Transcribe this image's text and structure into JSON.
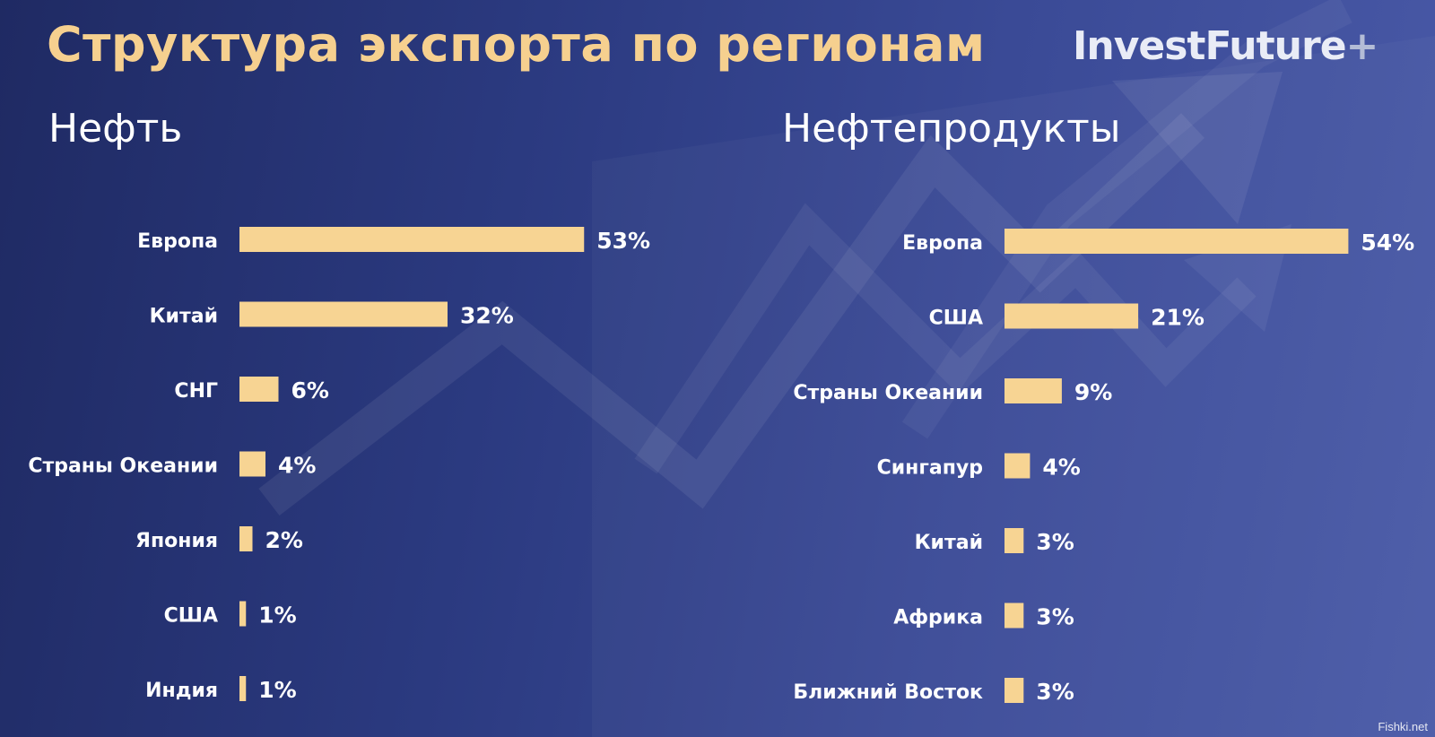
{
  "header": {
    "title": "Структура экспорта по регионам",
    "brand": "InvestFuture",
    "brand_plus": "+"
  },
  "watermark": "Fishki.net",
  "colors": {
    "bar": "#f7d493",
    "title": "#f6d08f"
  },
  "chart_data": [
    {
      "type": "bar",
      "orientation": "horizontal",
      "title": "Нефть",
      "categories": [
        "Европа",
        "Китай",
        "СНГ",
        "Страны Океании",
        "Япония",
        "США",
        "Индия"
      ],
      "values": [
        53,
        32,
        6,
        4,
        2,
        1,
        1
      ],
      "value_labels": [
        "53%",
        "32%",
        "6%",
        "4%",
        "2%",
        "1%",
        "1%"
      ],
      "unit": "%"
    },
    {
      "type": "bar",
      "orientation": "horizontal",
      "title": "Нефтепродукты",
      "categories": [
        "Европа",
        "США",
        "Страны Океании",
        "Сингапур",
        "Китай",
        "Африка",
        "Ближний Восток"
      ],
      "values": [
        54,
        21,
        9,
        4,
        3,
        3,
        3
      ],
      "value_labels": [
        "54%",
        "21%",
        "9%",
        "4%",
        "3%",
        "3%",
        "3%"
      ],
      "unit": "%"
    }
  ]
}
